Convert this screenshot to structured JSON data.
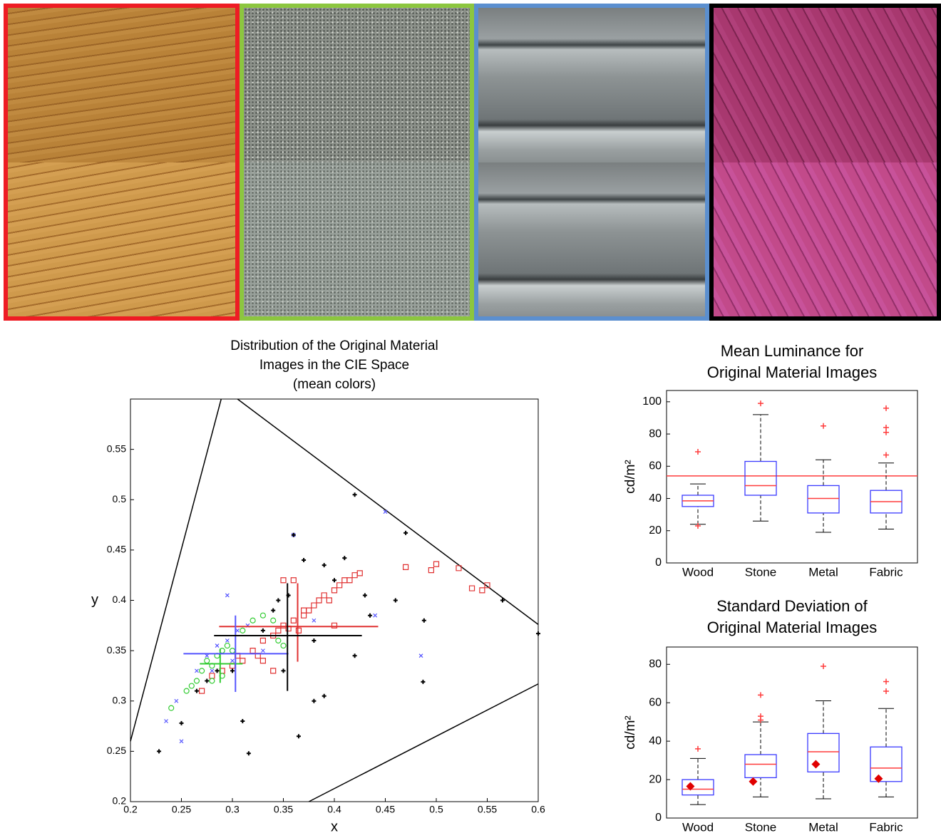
{
  "chart_data": [
    {
      "type": "scatter",
      "title": [
        "Distribution of the Original Material",
        "Images in the CIE Space",
        "(mean colors)"
      ],
      "x_label": "x",
      "y_label": "y",
      "xlim": [
        0.2,
        0.6
      ],
      "ylim": [
        0.2,
        0.6
      ],
      "xticks": [
        0.2,
        0.25,
        0.3,
        0.35,
        0.4,
        0.45,
        0.5,
        0.55,
        0.6
      ],
      "yticks": [
        0.2,
        0.25,
        0.3,
        0.35,
        0.4,
        0.45,
        0.5,
        0.55
      ],
      "boundary": [
        {
          "x": [
            0.2,
            0.289
          ],
          "y": [
            0.26,
            0.6
          ]
        },
        {
          "x": [
            0.305,
            0.6
          ],
          "y": [
            0.6,
            0.376
          ]
        },
        {
          "x": [
            0.375,
            0.6
          ],
          "y": [
            0.2,
            0.317
          ]
        }
      ],
      "series": [
        {
          "color": "#e03030",
          "marker": "square",
          "x": [
            0.27,
            0.28,
            0.29,
            0.3,
            0.305,
            0.31,
            0.32,
            0.325,
            0.33,
            0.34,
            0.345,
            0.35,
            0.355,
            0.36,
            0.37,
            0.375,
            0.38,
            0.385,
            0.39,
            0.395,
            0.4,
            0.405,
            0.41,
            0.415,
            0.42,
            0.425,
            0.36,
            0.35,
            0.365,
            0.34,
            0.37,
            0.33,
            0.47,
            0.495,
            0.5,
            0.522,
            0.535,
            0.545,
            0.55,
            0.4
          ],
          "y": [
            0.31,
            0.325,
            0.33,
            0.335,
            0.345,
            0.34,
            0.35,
            0.345,
            0.36,
            0.365,
            0.37,
            0.375,
            0.372,
            0.38,
            0.385,
            0.39,
            0.395,
            0.4,
            0.405,
            0.4,
            0.41,
            0.415,
            0.42,
            0.42,
            0.425,
            0.427,
            0.42,
            0.42,
            0.37,
            0.33,
            0.39,
            0.34,
            0.433,
            0.43,
            0.436,
            0.432,
            0.412,
            0.41,
            0.415,
            0.375
          ],
          "mean": [
            0.364,
            0.374
          ],
          "x_span": [
            0.287,
            0.443
          ],
          "y_span": [
            0.339,
            0.417
          ]
        },
        {
          "color": "#33cc33",
          "marker": "circle",
          "x": [
            0.24,
            0.255,
            0.26,
            0.265,
            0.27,
            0.275,
            0.28,
            0.285,
            0.29,
            0.295,
            0.3,
            0.31,
            0.32,
            0.33,
            0.34,
            0.345,
            0.35,
            0.28,
            0.29
          ],
          "y": [
            0.293,
            0.31,
            0.315,
            0.32,
            0.33,
            0.34,
            0.335,
            0.345,
            0.35,
            0.355,
            0.35,
            0.37,
            0.38,
            0.385,
            0.38,
            0.36,
            0.355,
            0.32,
            0.325
          ],
          "mean": [
            0.288,
            0.337
          ],
          "x_span": [
            0.268,
            0.31
          ],
          "y_span": [
            0.318,
            0.352
          ]
        },
        {
          "color": "#5555ff",
          "marker": "x",
          "x": [
            0.235,
            0.245,
            0.265,
            0.275,
            0.285,
            0.295,
            0.305,
            0.315,
            0.33,
            0.36,
            0.38,
            0.45,
            0.485,
            0.44,
            0.295,
            0.25,
            0.28,
            0.3
          ],
          "y": [
            0.28,
            0.3,
            0.33,
            0.345,
            0.355,
            0.36,
            0.37,
            0.375,
            0.35,
            0.465,
            0.38,
            0.488,
            0.345,
            0.385,
            0.405,
            0.26,
            0.33,
            0.34
          ],
          "mean": [
            0.303,
            0.347
          ],
          "x_span": [
            0.252,
            0.355
          ],
          "y_span": [
            0.309,
            0.385
          ]
        },
        {
          "color": "#000000",
          "marker": "plus",
          "x": [
            0.228,
            0.25,
            0.265,
            0.275,
            0.285,
            0.3,
            0.31,
            0.316,
            0.34,
            0.345,
            0.355,
            0.36,
            0.37,
            0.39,
            0.41,
            0.42,
            0.4,
            0.43,
            0.435,
            0.46,
            0.47,
            0.488,
            0.487,
            0.38,
            0.39,
            0.365,
            0.42,
            0.35,
            0.6,
            0.565,
            0.38,
            0.33
          ],
          "y": [
            0.25,
            0.278,
            0.31,
            0.32,
            0.33,
            0.33,
            0.28,
            0.248,
            0.39,
            0.4,
            0.405,
            0.465,
            0.44,
            0.435,
            0.442,
            0.505,
            0.42,
            0.405,
            0.385,
            0.4,
            0.467,
            0.38,
            0.319,
            0.3,
            0.305,
            0.265,
            0.345,
            0.33,
            0.367,
            0.4,
            0.36,
            0.37
          ],
          "mean": [
            0.354,
            0.365
          ],
          "x_span": [
            0.282,
            0.427
          ],
          "y_span": [
            0.31,
            0.417
          ]
        }
      ]
    },
    {
      "type": "box",
      "title": [
        "Mean Luminance for",
        "Original Material Images"
      ],
      "y_label": "cd/m²",
      "categories": [
        "Wood",
        "Stone",
        "Metal",
        "Fabric"
      ],
      "ylim": [
        0,
        107
      ],
      "yticks": [
        0,
        20,
        40,
        60,
        80,
        100
      ],
      "box_color": "#3a3aff",
      "accent_color": "#ff3b3b",
      "reference_line": 54,
      "boxes": [
        {
          "low": 24,
          "q1": 35,
          "median": 38.5,
          "q3": 42,
          "high": 49,
          "outliers": [
            69,
            23
          ]
        },
        {
          "low": 26,
          "q1": 42,
          "median": 48,
          "q3": 63,
          "high": 92,
          "outliers": [
            99
          ]
        },
        {
          "low": 19,
          "q1": 31,
          "median": 40,
          "q3": 48,
          "high": 64,
          "outliers": [
            85
          ]
        },
        {
          "low": 21,
          "q1": 31,
          "median": 38,
          "q3": 45,
          "high": 62,
          "outliers": [
            96,
            84,
            81,
            67
          ]
        }
      ]
    },
    {
      "type": "box",
      "title": [
        "Standard Deviation of",
        "Original Material Images"
      ],
      "y_label": "cd/m²",
      "categories": [
        "Wood",
        "Stone",
        "Metal",
        "Fabric"
      ],
      "ylim": [
        0,
        89
      ],
      "yticks": [
        0,
        20,
        40,
        60,
        80
      ],
      "box_color": "#3a3aff",
      "accent_color": "#ff3b3b",
      "means": [
        16.5,
        19,
        28,
        20.5
      ],
      "boxes": [
        {
          "low": 7,
          "q1": 12,
          "median": 15,
          "q3": 20,
          "high": 31,
          "outliers": [
            36
          ]
        },
        {
          "low": 11,
          "q1": 21,
          "median": 28,
          "q3": 33,
          "high": 50,
          "outliers": [
            64,
            53,
            51
          ]
        },
        {
          "low": 10,
          "q1": 24,
          "median": 34.5,
          "q3": 44,
          "high": 61,
          "outliers": [
            79
          ]
        },
        {
          "low": 11,
          "q1": 19,
          "median": 26,
          "q3": 37,
          "high": 57,
          "outliers": [
            71,
            66
          ]
        }
      ]
    }
  ]
}
